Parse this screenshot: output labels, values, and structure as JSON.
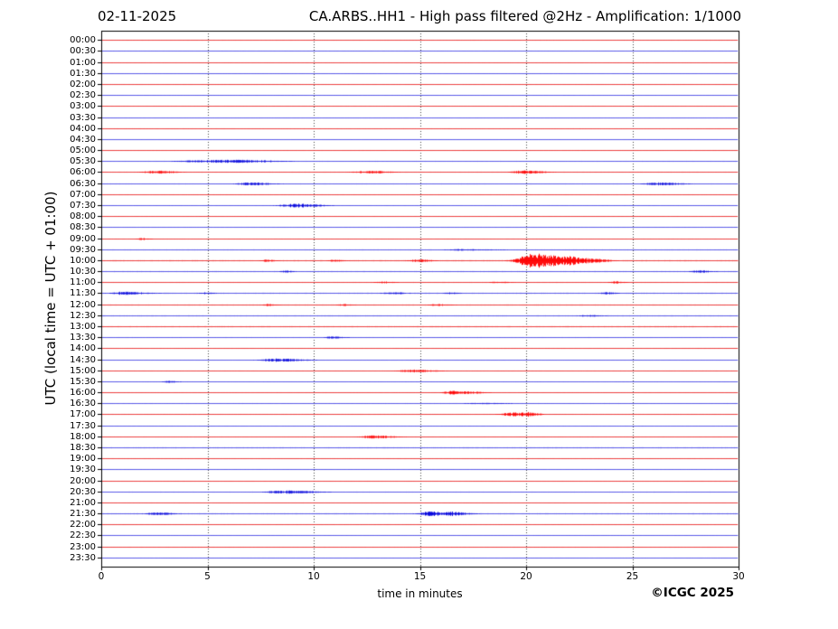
{
  "chart_data": {
    "type": "line",
    "subtype": "helicorder-seismogram",
    "date": "02-11-2025",
    "title": "CA.ARBS..HH1 - High pass filtered @2Hz - Amplification: 1/1000",
    "xlabel": "time in minutes",
    "ylabel": "UTC (local time = UTC + 01:00)",
    "copyright": "©ICGC 2025",
    "xlim": [
      0,
      30
    ],
    "x_ticks": [
      0,
      5,
      10,
      15,
      20,
      25,
      30
    ],
    "grid_minutes": [
      5,
      10,
      15,
      20,
      25
    ],
    "grid_on": true,
    "minutes_per_row": 30,
    "colors": {
      "trace_red": "#eb2828",
      "trace_red_strong": "#ff0000",
      "trace_blue": "#4646e6",
      "trace_blue_strong": "#0000dc",
      "grid": "#444444",
      "axis": "#000000",
      "background": "#ffffff"
    },
    "event_fields": [
      "minute",
      "amplitude_px",
      "rise_min",
      "decay_min"
    ],
    "rows": [
      {
        "label": "00:00",
        "color": "red",
        "noise": 0.5,
        "events": []
      },
      {
        "label": "00:30",
        "color": "blue",
        "noise": 0.5,
        "events": []
      },
      {
        "label": "01:00",
        "color": "red",
        "noise": 0.45,
        "events": []
      },
      {
        "label": "01:30",
        "color": "blue",
        "noise": 0.45,
        "events": []
      },
      {
        "label": "02:00",
        "color": "red",
        "noise": 0.4,
        "events": []
      },
      {
        "label": "02:30",
        "color": "blue",
        "noise": 0.45,
        "events": []
      },
      {
        "label": "03:00",
        "color": "red",
        "noise": 0.45,
        "events": []
      },
      {
        "label": "03:30",
        "color": "blue",
        "noise": 0.4,
        "events": []
      },
      {
        "label": "04:00",
        "color": "red",
        "noise": 0.5,
        "events": []
      },
      {
        "label": "04:30",
        "color": "blue",
        "noise": 0.5,
        "events": []
      },
      {
        "label": "05:00",
        "color": "red",
        "noise": 0.5,
        "events": []
      },
      {
        "label": "05:30",
        "color": "blue",
        "noise": 0.55,
        "events": [
          [
            6.3,
            1.8,
            1.1,
            1.5
          ],
          [
            4.3,
            0.8,
            0.8,
            0.8
          ]
        ]
      },
      {
        "label": "06:00",
        "color": "red",
        "noise": 0.55,
        "events": [
          [
            2.6,
            1.8,
            0.5,
            0.7
          ],
          [
            12.6,
            1.6,
            0.6,
            0.8
          ],
          [
            19.8,
            2.0,
            0.4,
            0.8
          ]
        ]
      },
      {
        "label": "06:30",
        "color": "blue",
        "noise": 0.55,
        "events": [
          [
            7.0,
            1.8,
            0.5,
            0.8
          ],
          [
            26.2,
            1.8,
            0.5,
            0.9
          ]
        ]
      },
      {
        "label": "07:00",
        "color": "red",
        "noise": 0.5,
        "events": []
      },
      {
        "label": "07:30",
        "color": "blue",
        "noise": 0.5,
        "events": [
          [
            9.2,
            2.2,
            0.6,
            0.9
          ]
        ]
      },
      {
        "label": "08:00",
        "color": "red",
        "noise": 0.45,
        "events": []
      },
      {
        "label": "08:30",
        "color": "blue",
        "noise": 0.45,
        "events": []
      },
      {
        "label": "09:00",
        "color": "red",
        "noise": 0.5,
        "events": [
          [
            1.9,
            1.2,
            0.2,
            0.3
          ]
        ]
      },
      {
        "label": "09:30",
        "color": "blue",
        "noise": 0.6,
        "events": [
          [
            16.8,
            0.9,
            0.5,
            1.5
          ]
        ]
      },
      {
        "label": "10:00",
        "color": "red",
        "noise": 0.8,
        "events": [
          [
            7.7,
            1.3,
            0.2,
            0.4
          ],
          [
            10.9,
            1.3,
            0.2,
            0.4
          ],
          [
            14.8,
            1.8,
            0.3,
            0.6
          ],
          [
            20.3,
            8.0,
            0.55,
            1.35
          ],
          [
            22.2,
            1.8,
            0.3,
            0.8
          ],
          [
            23.3,
            1.3,
            0.2,
            0.5
          ]
        ]
      },
      {
        "label": "10:30",
        "color": "blue",
        "noise": 0.7,
        "events": [
          [
            8.6,
            1.2,
            0.2,
            0.4
          ],
          [
            28.1,
            1.4,
            0.3,
            0.5
          ]
        ]
      },
      {
        "label": "11:00",
        "color": "red",
        "noise": 0.6,
        "events": [
          [
            13.2,
            1.1,
            0.3,
            0.5
          ],
          [
            18.6,
            1.1,
            0.3,
            0.5
          ],
          [
            24.1,
            1.4,
            0.2,
            0.4
          ]
        ]
      },
      {
        "label": "11:30",
        "color": "blue",
        "noise": 0.75,
        "events": [
          [
            0.9,
            1.8,
            0.4,
            1.0
          ],
          [
            4.8,
            1.1,
            0.2,
            0.4
          ],
          [
            13.6,
            1.4,
            0.3,
            0.5
          ],
          [
            16.3,
            1.1,
            0.2,
            0.4
          ],
          [
            23.7,
            1.4,
            0.2,
            0.4
          ]
        ]
      },
      {
        "label": "12:00",
        "color": "red",
        "noise": 0.65,
        "events": [
          [
            7.8,
            1.3,
            0.2,
            0.4
          ],
          [
            11.3,
            1.1,
            0.2,
            0.4
          ],
          [
            15.7,
            1.1,
            0.3,
            0.6
          ]
        ]
      },
      {
        "label": "12:30",
        "color": "blue",
        "noise": 0.7,
        "events": [
          [
            22.8,
            1.1,
            0.3,
            0.6
          ]
        ]
      },
      {
        "label": "13:00",
        "color": "red",
        "noise": 0.75,
        "events": []
      },
      {
        "label": "13:30",
        "color": "blue",
        "noise": 0.55,
        "events": [
          [
            10.8,
            1.3,
            0.3,
            0.5
          ]
        ]
      },
      {
        "label": "14:00",
        "color": "red",
        "noise": 0.5,
        "events": []
      },
      {
        "label": "14:30",
        "color": "blue",
        "noise": 0.5,
        "events": [
          [
            8.3,
            1.9,
            0.6,
            1.0
          ]
        ]
      },
      {
        "label": "15:00",
        "color": "red",
        "noise": 0.5,
        "events": [
          [
            14.6,
            1.6,
            0.5,
            0.9
          ]
        ]
      },
      {
        "label": "15:30",
        "color": "blue",
        "noise": 0.5,
        "events": [
          [
            3.1,
            1.1,
            0.2,
            0.4
          ]
        ]
      },
      {
        "label": "16:00",
        "color": "red",
        "noise": 0.5,
        "events": [
          [
            16.6,
            2.2,
            0.4,
            0.9
          ]
        ]
      },
      {
        "label": "16:30",
        "color": "blue",
        "noise": 0.55,
        "events": [
          [
            17.8,
            0.8,
            0.6,
            1.2
          ]
        ]
      },
      {
        "label": "17:00",
        "color": "red",
        "noise": 0.5,
        "events": [
          [
            19.3,
            2.2,
            0.4,
            0.6
          ],
          [
            20.1,
            1.7,
            0.2,
            0.4
          ]
        ]
      },
      {
        "label": "17:30",
        "color": "blue",
        "noise": 0.5,
        "events": []
      },
      {
        "label": "18:00",
        "color": "red",
        "noise": 0.5,
        "events": [
          [
            12.7,
            1.8,
            0.4,
            0.9
          ]
        ]
      },
      {
        "label": "18:30",
        "color": "blue",
        "noise": 0.75,
        "events": []
      },
      {
        "label": "19:00",
        "color": "red",
        "noise": 0.45,
        "events": []
      },
      {
        "label": "19:30",
        "color": "blue",
        "noise": 0.5,
        "events": []
      },
      {
        "label": "20:00",
        "color": "red",
        "noise": 0.45,
        "events": []
      },
      {
        "label": "20:30",
        "color": "blue",
        "noise": 0.55,
        "events": [
          [
            8.4,
            1.9,
            0.5,
            1.3
          ]
        ]
      },
      {
        "label": "21:00",
        "color": "red",
        "noise": 0.45,
        "events": []
      },
      {
        "label": "21:30",
        "color": "blue",
        "noise": 0.75,
        "events": [
          [
            2.6,
            1.6,
            0.4,
            0.6
          ],
          [
            15.4,
            2.6,
            0.4,
            0.5
          ],
          [
            16.4,
            2.2,
            0.3,
            0.7
          ]
        ]
      },
      {
        "label": "22:00",
        "color": "red",
        "noise": 0.5,
        "events": []
      },
      {
        "label": "22:30",
        "color": "blue",
        "noise": 0.45,
        "events": []
      },
      {
        "label": "23:00",
        "color": "red",
        "noise": 0.5,
        "events": []
      },
      {
        "label": "23:30",
        "color": "blue",
        "noise": 0.45,
        "events": []
      }
    ]
  }
}
